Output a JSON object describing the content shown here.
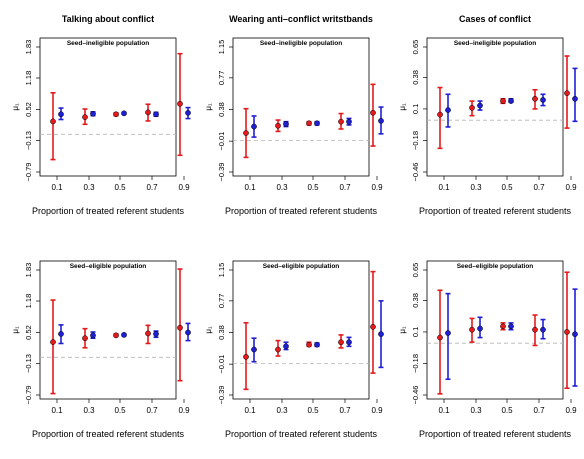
{
  "chart_data": [
    {
      "type": "scatter",
      "title": "Talking about conflict",
      "subtitle": "Seed–ineligible population",
      "xlabel": "Proportion of treated referent students",
      "ylabel": "μ₁",
      "x_ticks": [
        "0.1",
        "0.3",
        "0.5",
        "0.7",
        "0.9"
      ],
      "y_ticks": [
        "−0.79",
        "−0.13",
        "0.52",
        "1.18",
        "1.83"
      ],
      "y_tick_values": [
        -0.79,
        -0.13,
        0.52,
        1.18,
        1.83
      ],
      "ylim": [
        -0.79,
        1.83
      ],
      "reference_line": 0.0,
      "series": [
        {
          "color": "#e41a1c",
          "x": [
            0.1,
            0.3,
            0.5,
            0.7,
            0.9
          ],
          "estimate": [
            0.27,
            0.36,
            0.42,
            0.46,
            0.64
          ],
          "lower": [
            -0.53,
            0.21,
            0.39,
            0.28,
            -0.44
          ],
          "upper": [
            0.87,
            0.53,
            0.45,
            0.63,
            1.69
          ]
        },
        {
          "color": "#1f1fd6",
          "x": [
            0.1,
            0.3,
            0.5,
            0.7,
            0.9
          ],
          "estimate": [
            0.42,
            0.43,
            0.44,
            0.42,
            0.45
          ],
          "lower": [
            0.31,
            0.39,
            0.42,
            0.38,
            0.33
          ],
          "upper": [
            0.55,
            0.47,
            0.46,
            0.46,
            0.56
          ]
        }
      ]
    },
    {
      "type": "scatter",
      "title": "Wearing anti–conflict writstbands",
      "subtitle": "Seed–ineligible population",
      "xlabel": "Proportion of treated referent students",
      "ylabel": "μ₁",
      "x_ticks": [
        "0.1",
        "0.3",
        "0.5",
        "0.7",
        "0.9"
      ],
      "y_ticks": [
        "−0.39",
        "−0.01",
        "0.38",
        "0.77",
        "1.15"
      ],
      "y_tick_values": [
        -0.39,
        -0.01,
        0.38,
        0.77,
        1.15
      ],
      "ylim": [
        -0.39,
        1.15
      ],
      "reference_line": 0.0,
      "series": [
        {
          "color": "#e41a1c",
          "x": [
            0.1,
            0.3,
            0.5,
            0.7,
            0.9
          ],
          "estimate": [
            0.09,
            0.18,
            0.21,
            0.23,
            0.34
          ],
          "lower": [
            -0.21,
            0.11,
            0.19,
            0.14,
            -0.07
          ],
          "upper": [
            0.39,
            0.25,
            0.23,
            0.33,
            0.69
          ]
        },
        {
          "color": "#1f1fd6",
          "x": [
            0.1,
            0.3,
            0.5,
            0.7,
            0.9
          ],
          "estimate": [
            0.17,
            0.2,
            0.21,
            0.23,
            0.24
          ],
          "lower": [
            0.04,
            0.17,
            0.19,
            0.19,
            0.08
          ],
          "upper": [
            0.3,
            0.23,
            0.23,
            0.27,
            0.41
          ]
        }
      ]
    },
    {
      "type": "scatter",
      "title": "Cases of conflict",
      "subtitle": "Seed–ineligible population",
      "xlabel": "Proportion of treated referent students",
      "ylabel": "μ₁",
      "x_ticks": [
        "0.1",
        "0.3",
        "0.5",
        "0.7",
        "0.9"
      ],
      "y_ticks": [
        "−0.46",
        "−0.18",
        "0.1",
        "0.38",
        "0.65"
      ],
      "y_tick_values": [
        -0.46,
        -0.18,
        0.1,
        0.38,
        0.65
      ],
      "ylim": [
        -0.46,
        0.65
      ],
      "reference_line": 0.0,
      "series": [
        {
          "color": "#e41a1c",
          "x": [
            0.1,
            0.3,
            0.5,
            0.7,
            0.9
          ],
          "estimate": [
            0.05,
            0.11,
            0.17,
            0.19,
            0.24
          ],
          "lower": [
            -0.25,
            0.04,
            0.15,
            0.1,
            -0.07
          ],
          "upper": [
            0.29,
            0.17,
            0.19,
            0.27,
            0.57
          ]
        },
        {
          "color": "#1f1fd6",
          "x": [
            0.1,
            0.3,
            0.5,
            0.7,
            0.9
          ],
          "estimate": [
            0.09,
            0.13,
            0.17,
            0.18,
            0.19
          ],
          "lower": [
            -0.06,
            0.09,
            0.16,
            0.13,
            -0.01
          ],
          "upper": [
            0.23,
            0.17,
            0.19,
            0.23,
            0.46
          ]
        }
      ]
    },
    {
      "type": "scatter",
      "title": "",
      "subtitle": "Seed–eligible population",
      "xlabel": "Proportion of treated referent students",
      "ylabel": "μ₁",
      "x_ticks": [
        "0.1",
        "0.3",
        "0.5",
        "0.7",
        "0.9"
      ],
      "y_ticks": [
        "−0.79",
        "−0.13",
        "0.52",
        "1.18",
        "1.83"
      ],
      "y_tick_values": [
        -0.79,
        -0.13,
        0.52,
        1.18,
        1.83
      ],
      "ylim": [
        -0.79,
        1.83
      ],
      "reference_line": 0.0,
      "series": [
        {
          "color": "#e41a1c",
          "x": [
            0.1,
            0.3,
            0.5,
            0.7,
            0.9
          ],
          "estimate": [
            0.32,
            0.4,
            0.46,
            0.5,
            0.62
          ],
          "lower": [
            -0.76,
            0.2,
            0.44,
            0.29,
            -0.49
          ],
          "upper": [
            1.2,
            0.6,
            0.49,
            0.67,
            1.85
          ]
        },
        {
          "color": "#1f1fd6",
          "x": [
            0.1,
            0.3,
            0.5,
            0.7,
            0.9
          ],
          "estimate": [
            0.49,
            0.46,
            0.47,
            0.49,
            0.52
          ],
          "lower": [
            0.29,
            0.4,
            0.45,
            0.42,
            0.35
          ],
          "upper": [
            0.68,
            0.53,
            0.49,
            0.55,
            0.71
          ]
        }
      ]
    },
    {
      "type": "scatter",
      "title": "",
      "subtitle": "Seed–eligible population",
      "xlabel": "Proportion of treated referent students",
      "ylabel": "μ₁",
      "x_ticks": [
        "0.1",
        "0.3",
        "0.5",
        "0.7",
        "0.9"
      ],
      "y_ticks": [
        "−0.39",
        "−0.01",
        "0.38",
        "0.77",
        "1.15"
      ],
      "y_tick_values": [
        -0.39,
        -0.01,
        0.38,
        0.77,
        1.15
      ],
      "ylim": [
        -0.39,
        1.15
      ],
      "reference_line": 0.0,
      "series": [
        {
          "color": "#e41a1c",
          "x": [
            0.1,
            0.3,
            0.5,
            0.7,
            0.9
          ],
          "estimate": [
            0.08,
            0.17,
            0.23,
            0.26,
            0.45
          ],
          "lower": [
            -0.32,
            0.09,
            0.21,
            0.19,
            -0.12
          ],
          "upper": [
            0.5,
            0.28,
            0.26,
            0.35,
            1.13
          ]
        },
        {
          "color": "#1f1fd6",
          "x": [
            0.1,
            0.3,
            0.5,
            0.7,
            0.9
          ],
          "estimate": [
            0.17,
            0.21,
            0.23,
            0.26,
            0.36
          ],
          "lower": [
            0.02,
            0.17,
            0.21,
            0.21,
            -0.05
          ],
          "upper": [
            0.31,
            0.26,
            0.25,
            0.32,
            0.77
          ]
        }
      ]
    },
    {
      "type": "scatter",
      "title": "",
      "subtitle": "Seed–eligible population",
      "xlabel": "Proportion of treated referent students",
      "ylabel": "μ₁",
      "x_ticks": [
        "0.1",
        "0.3",
        "0.5",
        "0.7",
        "0.9"
      ],
      "y_ticks": [
        "−0.46",
        "−0.18",
        "0.1",
        "0.38",
        "0.65"
      ],
      "y_tick_values": [
        -0.46,
        -0.18,
        0.1,
        0.38,
        0.65
      ],
      "ylim": [
        -0.46,
        0.65
      ],
      "reference_line": 0.0,
      "series": [
        {
          "color": "#e41a1c",
          "x": [
            0.1,
            0.3,
            0.5,
            0.7,
            0.9
          ],
          "estimate": [
            0.05,
            0.12,
            0.15,
            0.12,
            0.1
          ],
          "lower": [
            -0.45,
            0.01,
            0.12,
            -0.02,
            -0.4
          ],
          "upper": [
            0.47,
            0.22,
            0.18,
            0.25,
            0.63
          ]
        },
        {
          "color": "#1f1fd6",
          "x": [
            0.1,
            0.3,
            0.5,
            0.7,
            0.9
          ],
          "estimate": [
            0.09,
            0.13,
            0.15,
            0.12,
            0.08
          ],
          "lower": [
            -0.32,
            0.05,
            0.12,
            0.04,
            -0.38
          ],
          "upper": [
            0.44,
            0.23,
            0.18,
            0.21,
            0.48
          ]
        }
      ]
    }
  ]
}
